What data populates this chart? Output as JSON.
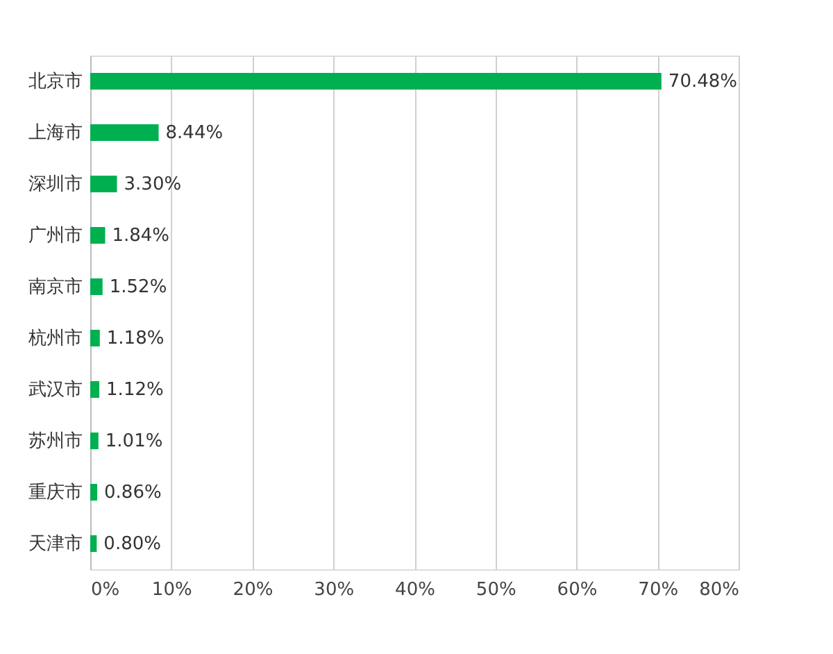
{
  "chart_data": {
    "type": "bar",
    "orientation": "horizontal",
    "categories": [
      "北京市",
      "上海市",
      "深圳市",
      "广州市",
      "南京市",
      "杭州市",
      "武汉市",
      "苏州市",
      "重庆市",
      "天津市"
    ],
    "values": [
      70.48,
      8.44,
      3.3,
      1.84,
      1.52,
      1.18,
      1.12,
      1.01,
      0.86,
      0.8
    ],
    "value_labels": [
      "70.48%",
      "8.44%",
      "3.30%",
      "1.84%",
      "1.52%",
      "1.18%",
      "1.12%",
      "1.01%",
      "0.86%",
      "0.80%"
    ],
    "color": "#00b050",
    "xlim": [
      0,
      80
    ],
    "xticks": [
      {
        "value": 0,
        "label": "0%"
      },
      {
        "value": 10,
        "label": "10%"
      },
      {
        "value": 20,
        "label": "20%"
      },
      {
        "value": 30,
        "label": "30%"
      },
      {
        "value": 40,
        "label": "40%"
      },
      {
        "value": 50,
        "label": "50%"
      },
      {
        "value": 60,
        "label": "60%"
      },
      {
        "value": 70,
        "label": "70%"
      },
      {
        "value": 80,
        "label": "80%"
      }
    ],
    "grid": "x"
  }
}
